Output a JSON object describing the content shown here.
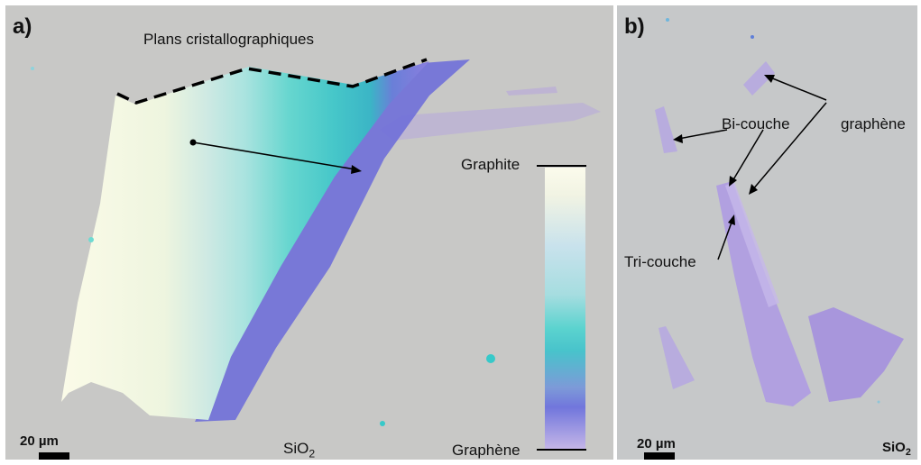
{
  "panel_a": {
    "label": "a)",
    "title_annotation": "Plans cristallographiques",
    "colorbar": {
      "top_label": "Graphite",
      "bottom_label": "Graphène"
    },
    "scale": "20 µm",
    "substrate": {
      "main": "SiO",
      "sub": "2"
    }
  },
  "panel_b": {
    "label": "b)",
    "bilayer_label": "Bi-couche",
    "graphene_label": "graphène",
    "trilayer_label": "Tri-couche",
    "scale": "20 µm",
    "substrate": {
      "main": "SiO",
      "sub": "2"
    }
  }
}
